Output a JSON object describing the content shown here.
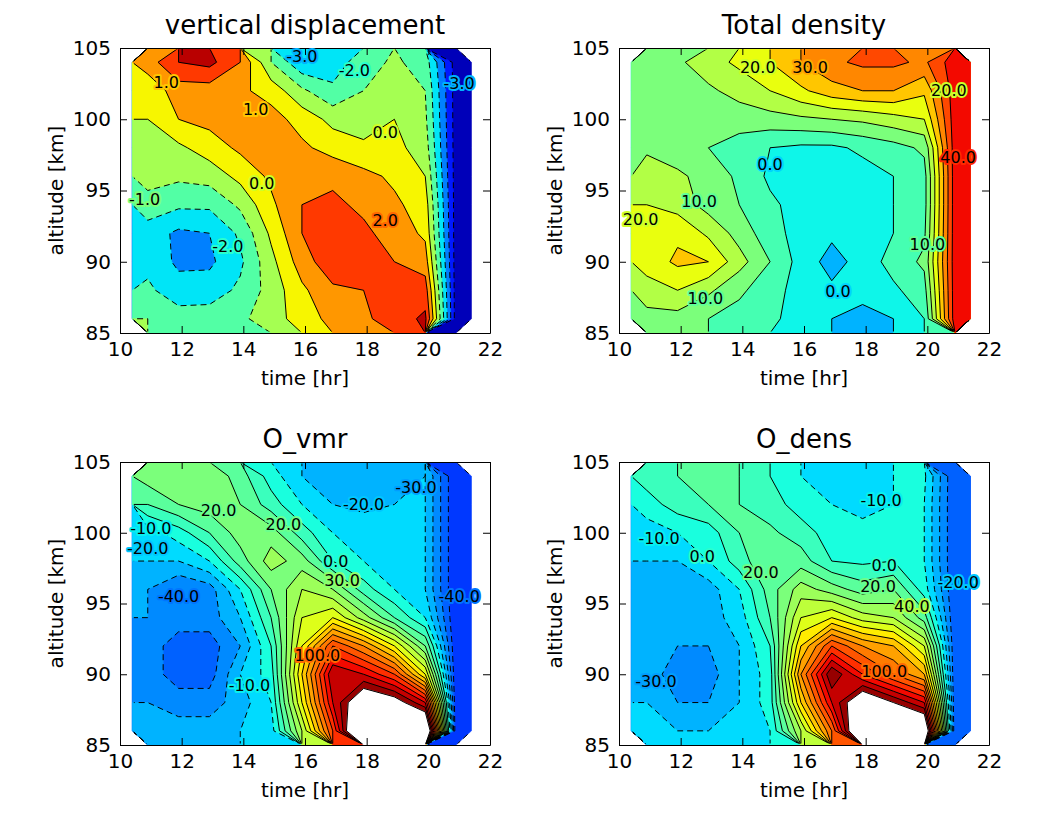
{
  "chart_data": [
    {
      "type": "contour",
      "title": "vertical displacement",
      "x_label": "time [hr]",
      "y_label": "altitude [km]",
      "xlim": [
        10,
        22
      ],
      "ylim": [
        85,
        105
      ],
      "xticks": [
        10,
        12,
        14,
        16,
        18,
        20,
        22
      ],
      "yticks": [
        85,
        90,
        95,
        100,
        105
      ],
      "x": [
        10.9,
        11.9,
        12.9,
        13.9,
        14.9,
        15.9,
        16.9,
        17.9,
        18.9,
        19.9,
        20.9
      ],
      "y": [
        86,
        88,
        90,
        92,
        94,
        96,
        98,
        100,
        102,
        104
      ],
      "z": [
        [
          -1.0,
          -1.5,
          -1.5,
          -1.2,
          -0.5,
          0.5,
          1.3,
          1.8,
          2.5,
          3.2,
          -5.5
        ],
        [
          -1.8,
          -2.6,
          -2.5,
          -1.8,
          -0.6,
          0.8,
          1.8,
          2.0,
          2.3,
          2.5,
          -5.5
        ],
        [
          -2.3,
          -3.2,
          -3.2,
          -2.2,
          -0.3,
          1.5,
          2.7,
          2.3,
          2.0,
          1.5,
          -5.5
        ],
        [
          -2.5,
          -3.2,
          -3.0,
          -1.8,
          0.2,
          2.0,
          2.6,
          2.2,
          1.6,
          0.8,
          -5.5
        ],
        [
          -1.4,
          -1.8,
          -1.8,
          -0.8,
          0.8,
          2.0,
          2.2,
          1.8,
          1.2,
          0.5,
          -5.5
        ],
        [
          -0.6,
          -0.8,
          -0.6,
          0.3,
          1.2,
          1.7,
          1.8,
          1.3,
          0.8,
          0.0,
          -5.5
        ],
        [
          -0.5,
          -0.2,
          0.5,
          1.2,
          1.6,
          1.2,
          0.6,
          0.2,
          0.3,
          -0.5,
          -5.5
        ],
        [
          0.0,
          1.0,
          1.3,
          1.6,
          1.4,
          0.6,
          -0.3,
          -0.5,
          0.0,
          -0.8,
          -5.5
        ],
        [
          0.3,
          1.5,
          1.5,
          1.2,
          0.6,
          -0.8,
          -1.8,
          -1.0,
          -0.5,
          -1.0,
          -5.5
        ],
        [
          1.5,
          3.0,
          3.3,
          2.0,
          -1.0,
          -2.8,
          -2.5,
          -1.5,
          -0.8,
          -1.5,
          -5.5
        ]
      ],
      "levels": [
        -6,
        -5,
        -4,
        -3,
        -2,
        -1,
        0,
        1,
        2,
        3,
        4
      ],
      "color_range": [
        -6,
        4
      ],
      "contour_labels": [
        {
          "x": 11.5,
          "y": 102.6,
          "value": 1,
          "label": "1.0"
        },
        {
          "x": 14.4,
          "y": 100.7,
          "value": 1,
          "label": "1.0"
        },
        {
          "x": 18.6,
          "y": 99.1,
          "value": 0,
          "label": "0.0"
        },
        {
          "x": 10.8,
          "y": 94.4,
          "value": -1,
          "label": "-1.0"
        },
        {
          "x": 14.6,
          "y": 95.5,
          "value": 0,
          "label": "0.0"
        },
        {
          "x": 13.5,
          "y": 91.1,
          "value": -2,
          "label": "-2.0"
        },
        {
          "x": 18.6,
          "y": 92.9,
          "value": 2,
          "label": "2.0"
        },
        {
          "x": 15.9,
          "y": 104.4,
          "value": -3,
          "label": "-3.0"
        },
        {
          "x": 17.6,
          "y": 103.4,
          "value": -2,
          "label": "-2.0"
        },
        {
          "x": 21.0,
          "y": 102.5,
          "value": -3,
          "label": "-3.0"
        }
      ]
    },
    {
      "type": "contour",
      "title": "Total density",
      "x_label": "time [hr]",
      "y_label": "altitude [km]",
      "xlim": [
        10,
        22
      ],
      "ylim": [
        85,
        105
      ],
      "xticks": [
        10,
        12,
        14,
        16,
        18,
        20,
        22
      ],
      "yticks": [
        85,
        90,
        95,
        100,
        105
      ],
      "x": [
        10.9,
        11.9,
        12.9,
        13.9,
        14.9,
        15.9,
        16.9,
        17.9,
        18.9,
        19.9,
        20.9
      ],
      "y": [
        86,
        88,
        90,
        92,
        94,
        96,
        98,
        100,
        102,
        104
      ],
      "z": [
        [
          13,
          13,
          10,
          8,
          6,
          3,
          0,
          -1,
          0,
          5,
          43
        ],
        [
          18,
          20,
          16,
          11,
          7,
          3,
          1,
          1,
          4,
          8,
          43
        ],
        [
          22,
          26,
          25,
          17,
          10,
          3,
          -2,
          2,
          7,
          11,
          43
        ],
        [
          22,
          24,
          19,
          13,
          7,
          3,
          1,
          2,
          5,
          9,
          43
        ],
        [
          20,
          18,
          13,
          10,
          6,
          3,
          2,
          3,
          5,
          8,
          43
        ],
        [
          18,
          16,
          13,
          9,
          4,
          1,
          1,
          3,
          5,
          8,
          43
        ],
        [
          14,
          12,
          10,
          8,
          5,
          4,
          4,
          6,
          8,
          11,
          43
        ],
        [
          10,
          10,
          11,
          12,
          13,
          14,
          15,
          16,
          18,
          20,
          43
        ],
        [
          10,
          12,
          14,
          17,
          20,
          24,
          28,
          30,
          30,
          26,
          43
        ],
        [
          12,
          14,
          18,
          21,
          25,
          30,
          34,
          36,
          36,
          34,
          43
        ]
      ],
      "levels": [
        -5,
        0,
        5,
        10,
        15,
        20,
        25,
        30,
        35,
        40,
        45,
        50
      ],
      "color_range": [
        -25,
        50
      ],
      "contour_labels": [
        {
          "x": 10.7,
          "y": 93.0,
          "value": 20,
          "label": "20.0"
        },
        {
          "x": 12.6,
          "y": 94.2,
          "value": 10,
          "label": "10.0"
        },
        {
          "x": 12.8,
          "y": 87.4,
          "value": 10,
          "label": "10.0"
        },
        {
          "x": 14.9,
          "y": 96.8,
          "value": 0,
          "label": "0.0"
        },
        {
          "x": 17.1,
          "y": 87.9,
          "value": 0,
          "label": "0.0"
        },
        {
          "x": 20.0,
          "y": 91.2,
          "value": 10,
          "label": "10.0"
        },
        {
          "x": 14.5,
          "y": 103.6,
          "value": 20,
          "label": "20.0"
        },
        {
          "x": 16.2,
          "y": 103.6,
          "value": 30,
          "label": "30.0"
        },
        {
          "x": 20.7,
          "y": 102.0,
          "value": 20,
          "label": "20.0"
        },
        {
          "x": 21.0,
          "y": 97.3,
          "value": 40,
          "label": "40.0"
        }
      ]
    },
    {
      "type": "contour",
      "title": "O_vmr",
      "x_label": "time [hr]",
      "y_label": "altitude [km]",
      "xlim": [
        10,
        22
      ],
      "ylim": [
        85,
        105
      ],
      "xticks": [
        10,
        12,
        14,
        16,
        18,
        20,
        22
      ],
      "yticks": [
        85,
        90,
        95,
        100,
        105
      ],
      "x": [
        10.9,
        11.9,
        12.9,
        13.9,
        14.9,
        15.9,
        16.9,
        17.9,
        18.9,
        19.9,
        20.9
      ],
      "y": [
        86,
        88,
        90,
        92,
        94,
        96,
        98,
        100,
        102,
        104
      ],
      "z": [
        [
          -25,
          -25,
          -25,
          -20,
          -15,
          40,
          110,
          200,
          200,
          190,
          -60
        ],
        [
          -30,
          -35,
          -35,
          -25,
          -10,
          60,
          130,
          170,
          160,
          130,
          -60
        ],
        [
          -35,
          -45,
          -45,
          -20,
          -5,
          70,
          140,
          130,
          110,
          60,
          -60
        ],
        [
          -35,
          -45,
          -45,
          -30,
          0,
          60,
          110,
          90,
          60,
          20,
          -60
        ],
        [
          -30,
          -35,
          -35,
          -20,
          10,
          50,
          60,
          35,
          10,
          -10,
          -60
        ],
        [
          -30,
          -40,
          -35,
          -10,
          20,
          40,
          30,
          5,
          -10,
          -20,
          -60
        ],
        [
          -20,
          -20,
          -10,
          15,
          35,
          25,
          0,
          -10,
          -15,
          -20,
          -60
        ],
        [
          -15,
          -5,
          10,
          25,
          25,
          5,
          -10,
          -15,
          -15,
          -20,
          -60
        ],
        [
          10,
          20,
          25,
          20,
          5,
          -10,
          -20,
          -22,
          -20,
          -20,
          -60
        ],
        [
          25,
          30,
          28,
          15,
          -5,
          -20,
          -25,
          -25,
          -22,
          -20,
          -60
        ]
      ],
      "levels": [
        -60,
        -50,
        -40,
        -30,
        -20,
        -10,
        0,
        10,
        20,
        30,
        40,
        50,
        60,
        70,
        80,
        90,
        100,
        110,
        120,
        130,
        140,
        150
      ],
      "color_range": [
        -100,
        150
      ],
      "contour_labels": [
        {
          "x": 13.2,
          "y": 101.6,
          "value": 20,
          "label": "20.0"
        },
        {
          "x": 11.0,
          "y": 100.3,
          "value": -10,
          "label": "-10.0"
        },
        {
          "x": 10.9,
          "y": 98.9,
          "value": -20,
          "label": "-20.0"
        },
        {
          "x": 15.3,
          "y": 100.6,
          "value": 20,
          "label": "20.0"
        },
        {
          "x": 17.9,
          "y": 102.0,
          "value": -20,
          "label": "-20.0"
        },
        {
          "x": 19.6,
          "y": 103.2,
          "value": -30,
          "label": "-30.0"
        },
        {
          "x": 17.0,
          "y": 98.0,
          "value": 0,
          "label": "0.0"
        },
        {
          "x": 17.2,
          "y": 96.6,
          "value": 30,
          "label": "30.0"
        },
        {
          "x": 11.9,
          "y": 95.5,
          "value": -40,
          "label": "-40.0"
        },
        {
          "x": 14.2,
          "y": 89.2,
          "value": -10,
          "label": "-10.0"
        },
        {
          "x": 16.4,
          "y": 91.3,
          "value": 100,
          "label": "100.0"
        },
        {
          "x": 21.0,
          "y": 95.5,
          "value": -40,
          "label": "-40.0"
        }
      ]
    },
    {
      "type": "contour",
      "title": "O_dens",
      "x_label": "time [hr]",
      "y_label": "altitude [km]",
      "xlim": [
        10,
        22
      ],
      "ylim": [
        85,
        105
      ],
      "xticks": [
        10,
        12,
        14,
        16,
        18,
        20,
        22
      ],
      "yticks": [
        85,
        90,
        95,
        100,
        105
      ],
      "x": [
        10.9,
        11.9,
        12.9,
        13.9,
        14.9,
        15.9,
        16.9,
        17.9,
        18.9,
        19.9,
        20.9
      ],
      "y": [
        86,
        88,
        90,
        92,
        94,
        96,
        98,
        100,
        102,
        104
      ],
      "z": [
        [
          -15,
          -20,
          -20,
          -15,
          -10,
          40,
          100,
          190,
          200,
          180,
          -50
        ],
        [
          -20,
          -30,
          -30,
          -20,
          -5,
          70,
          130,
          170,
          150,
          130,
          -50
        ],
        [
          -25,
          -35,
          -35,
          -20,
          -5,
          90,
          150,
          120,
          100,
          80,
          -50
        ],
        [
          -25,
          -30,
          -30,
          -20,
          0,
          70,
          110,
          90,
          80,
          50,
          -50
        ],
        [
          -25,
          -25,
          -25,
          -15,
          10,
          50,
          60,
          45,
          40,
          15,
          -50
        ],
        [
          -25,
          -30,
          -25,
          -10,
          15,
          35,
          25,
          15,
          20,
          -5,
          -50
        ],
        [
          -20,
          -20,
          -10,
          5,
          20,
          15,
          0,
          -2,
          0,
          -10,
          -50
        ],
        [
          -15,
          -10,
          -5,
          10,
          12,
          5,
          -5,
          -8,
          -8,
          -10,
          -50
        ],
        [
          -5,
          5,
          10,
          10,
          5,
          -5,
          -10,
          -12,
          -10,
          -10,
          -50
        ],
        [
          5,
          10,
          15,
          10,
          0,
          -10,
          -12,
          -12,
          -10,
          -8,
          -50
        ]
      ],
      "levels": [
        -60,
        -50,
        -40,
        -30,
        -20,
        -10,
        0,
        10,
        20,
        30,
        40,
        50,
        60,
        70,
        80,
        90,
        100,
        110,
        120,
        130,
        140,
        150
      ],
      "color_range": [
        -100,
        150
      ],
      "contour_labels": [
        {
          "x": 11.3,
          "y": 99.6,
          "value": -10,
          "label": "-10.0"
        },
        {
          "x": 12.7,
          "y": 98.3,
          "value": 0,
          "label": "0.0"
        },
        {
          "x": 14.6,
          "y": 97.2,
          "value": 20,
          "label": "20.0"
        },
        {
          "x": 18.5,
          "y": 102.3,
          "value": -10,
          "label": "-10.0"
        },
        {
          "x": 18.6,
          "y": 97.7,
          "value": 0,
          "label": "0.0"
        },
        {
          "x": 18.4,
          "y": 96.2,
          "value": 20,
          "label": "20.0"
        },
        {
          "x": 19.5,
          "y": 94.8,
          "value": 40,
          "label": "40.0"
        },
        {
          "x": 18.6,
          "y": 90.2,
          "value": 100,
          "label": "100.0"
        },
        {
          "x": 11.2,
          "y": 89.5,
          "value": -30,
          "label": "-30.0"
        },
        {
          "x": 21.0,
          "y": 96.5,
          "value": -20,
          "label": "-20.0"
        }
      ]
    }
  ]
}
